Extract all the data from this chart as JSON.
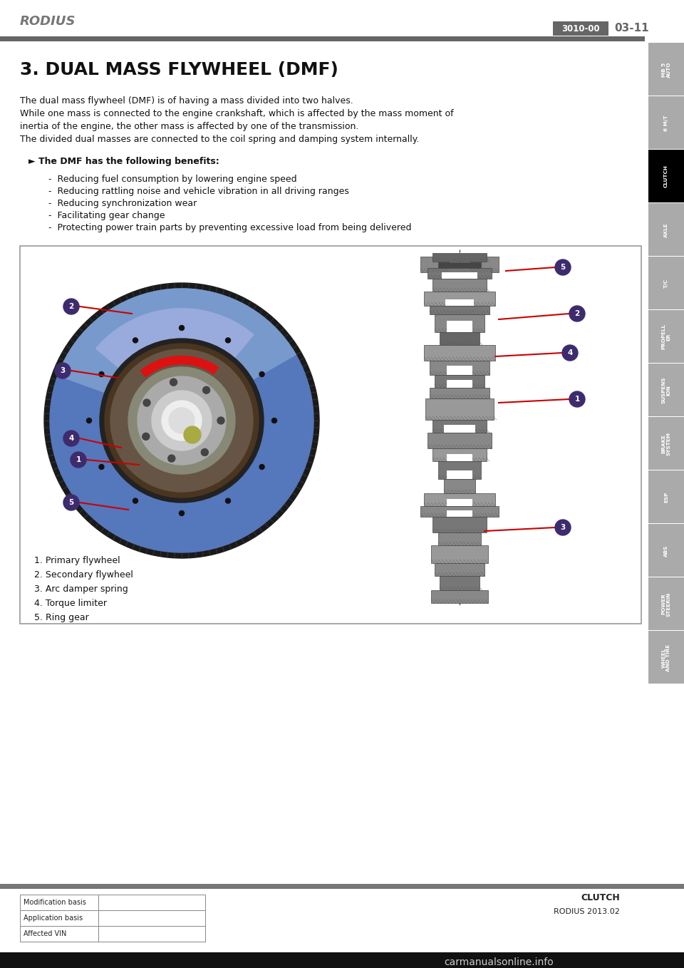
{
  "title": "3. DUAL MASS FLYWHEEL (DMF)",
  "brand": "RODIUS",
  "page_code": "3010-00",
  "page_num": "03-11",
  "section": "CLUTCH",
  "footer_right": "RODIUS 2013.02",
  "body_text": [
    "The dual mass flywheel (DMF) is of having a mass divided into two halves.",
    "While one mass is connected to the engine crankshaft, which is affected by the mass moment of",
    "inertia of the engine, the other mass is affected by one of the transmission.",
    "The divided dual masses are connected to the coil spring and damping system internally."
  ],
  "benefit_header": "► The DMF has the following benefits:",
  "benefits": [
    "Reducing fuel consumption by lowering engine speed",
    "Reducing rattling noise and vehicle vibration in all driving ranges",
    "Reducing synchronization wear",
    "Facilitating gear change",
    "Protecting power train parts by preventing excessive load from being delivered"
  ],
  "legend": [
    "1. Primary flywheel",
    "2. Secondary flywheel",
    "3. Arc damper spring",
    "4. Torque limiter",
    "5. Ring gear"
  ],
  "sidebar_labels": [
    "MB 5\nAUTO",
    "6 M/T",
    "CLUTCH",
    "AXLE",
    "T/C",
    "PROPELL\nER",
    "SUSPENS\nION",
    "BRAKE\nSYSTEM",
    "ESP",
    "ABS",
    "POWER\nSTEERIN",
    "WHEEL\nAND TIRE"
  ],
  "sidebar_active_index": 2,
  "table_labels": [
    "Modification basis",
    "Application basis",
    "Affected VIN"
  ],
  "bg_color": "#ffffff",
  "sidebar_color": "#aaaaaa",
  "sidebar_active_color": "#000000",
  "header_bar_color": "#666666",
  "box_color": "#666666",
  "callout_color": "#3d2b6e",
  "line_color": "#cc0000",
  "diagram_border_color": "#888888",
  "title_font_size": 18,
  "body_font_size": 9,
  "benefit_font_size": 9,
  "legend_font_size": 9
}
